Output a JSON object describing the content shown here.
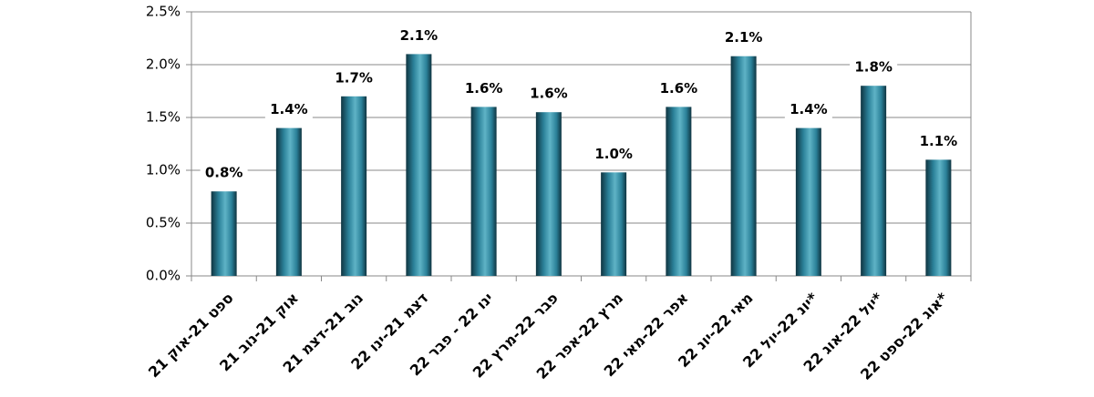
{
  "chart_data": {
    "type": "bar",
    "categories": [
      "ספט 21-אוק 21",
      "אוק 21-נוב 21",
      "נוב 21-דצמ 21",
      "דצמ 21-ינו 22",
      "ינו 22 - פבר 22",
      "פבר 22-מרץ 22",
      "מרץ 22-אפר 22",
      "אפר 22-מאי 22",
      "מאי 22-יונ 22",
      "יונ 22-יול 22*",
      "יול 22-אוג 22*",
      "אוג 22-ספט 22*"
    ],
    "values": [
      0.8,
      1.4,
      1.7,
      2.1,
      1.6,
      1.55,
      0.98,
      1.6,
      2.08,
      1.4,
      1.8,
      1.1
    ],
    "value_labels": [
      "0.8%",
      "1.4%",
      "1.7%",
      "2.1%",
      "1.6%",
      "1.6%",
      "1.0%",
      "1.6%",
      "2.1%",
      "1.4%",
      "1.8%",
      "1.1%"
    ],
    "color": "#2b8199",
    "ylim": [
      0,
      2.5
    ],
    "yticks": [
      {
        "value": 0,
        "label": "0.0%"
      },
      {
        "value": 0.5,
        "label": "0.5%"
      },
      {
        "value": 1,
        "label": "1.0%"
      },
      {
        "value": 1.5,
        "label": "1.5%"
      },
      {
        "value": 2,
        "label": "2.0%"
      },
      {
        "value": 2.5,
        "label": "2.5%"
      }
    ],
    "grid": true
  }
}
